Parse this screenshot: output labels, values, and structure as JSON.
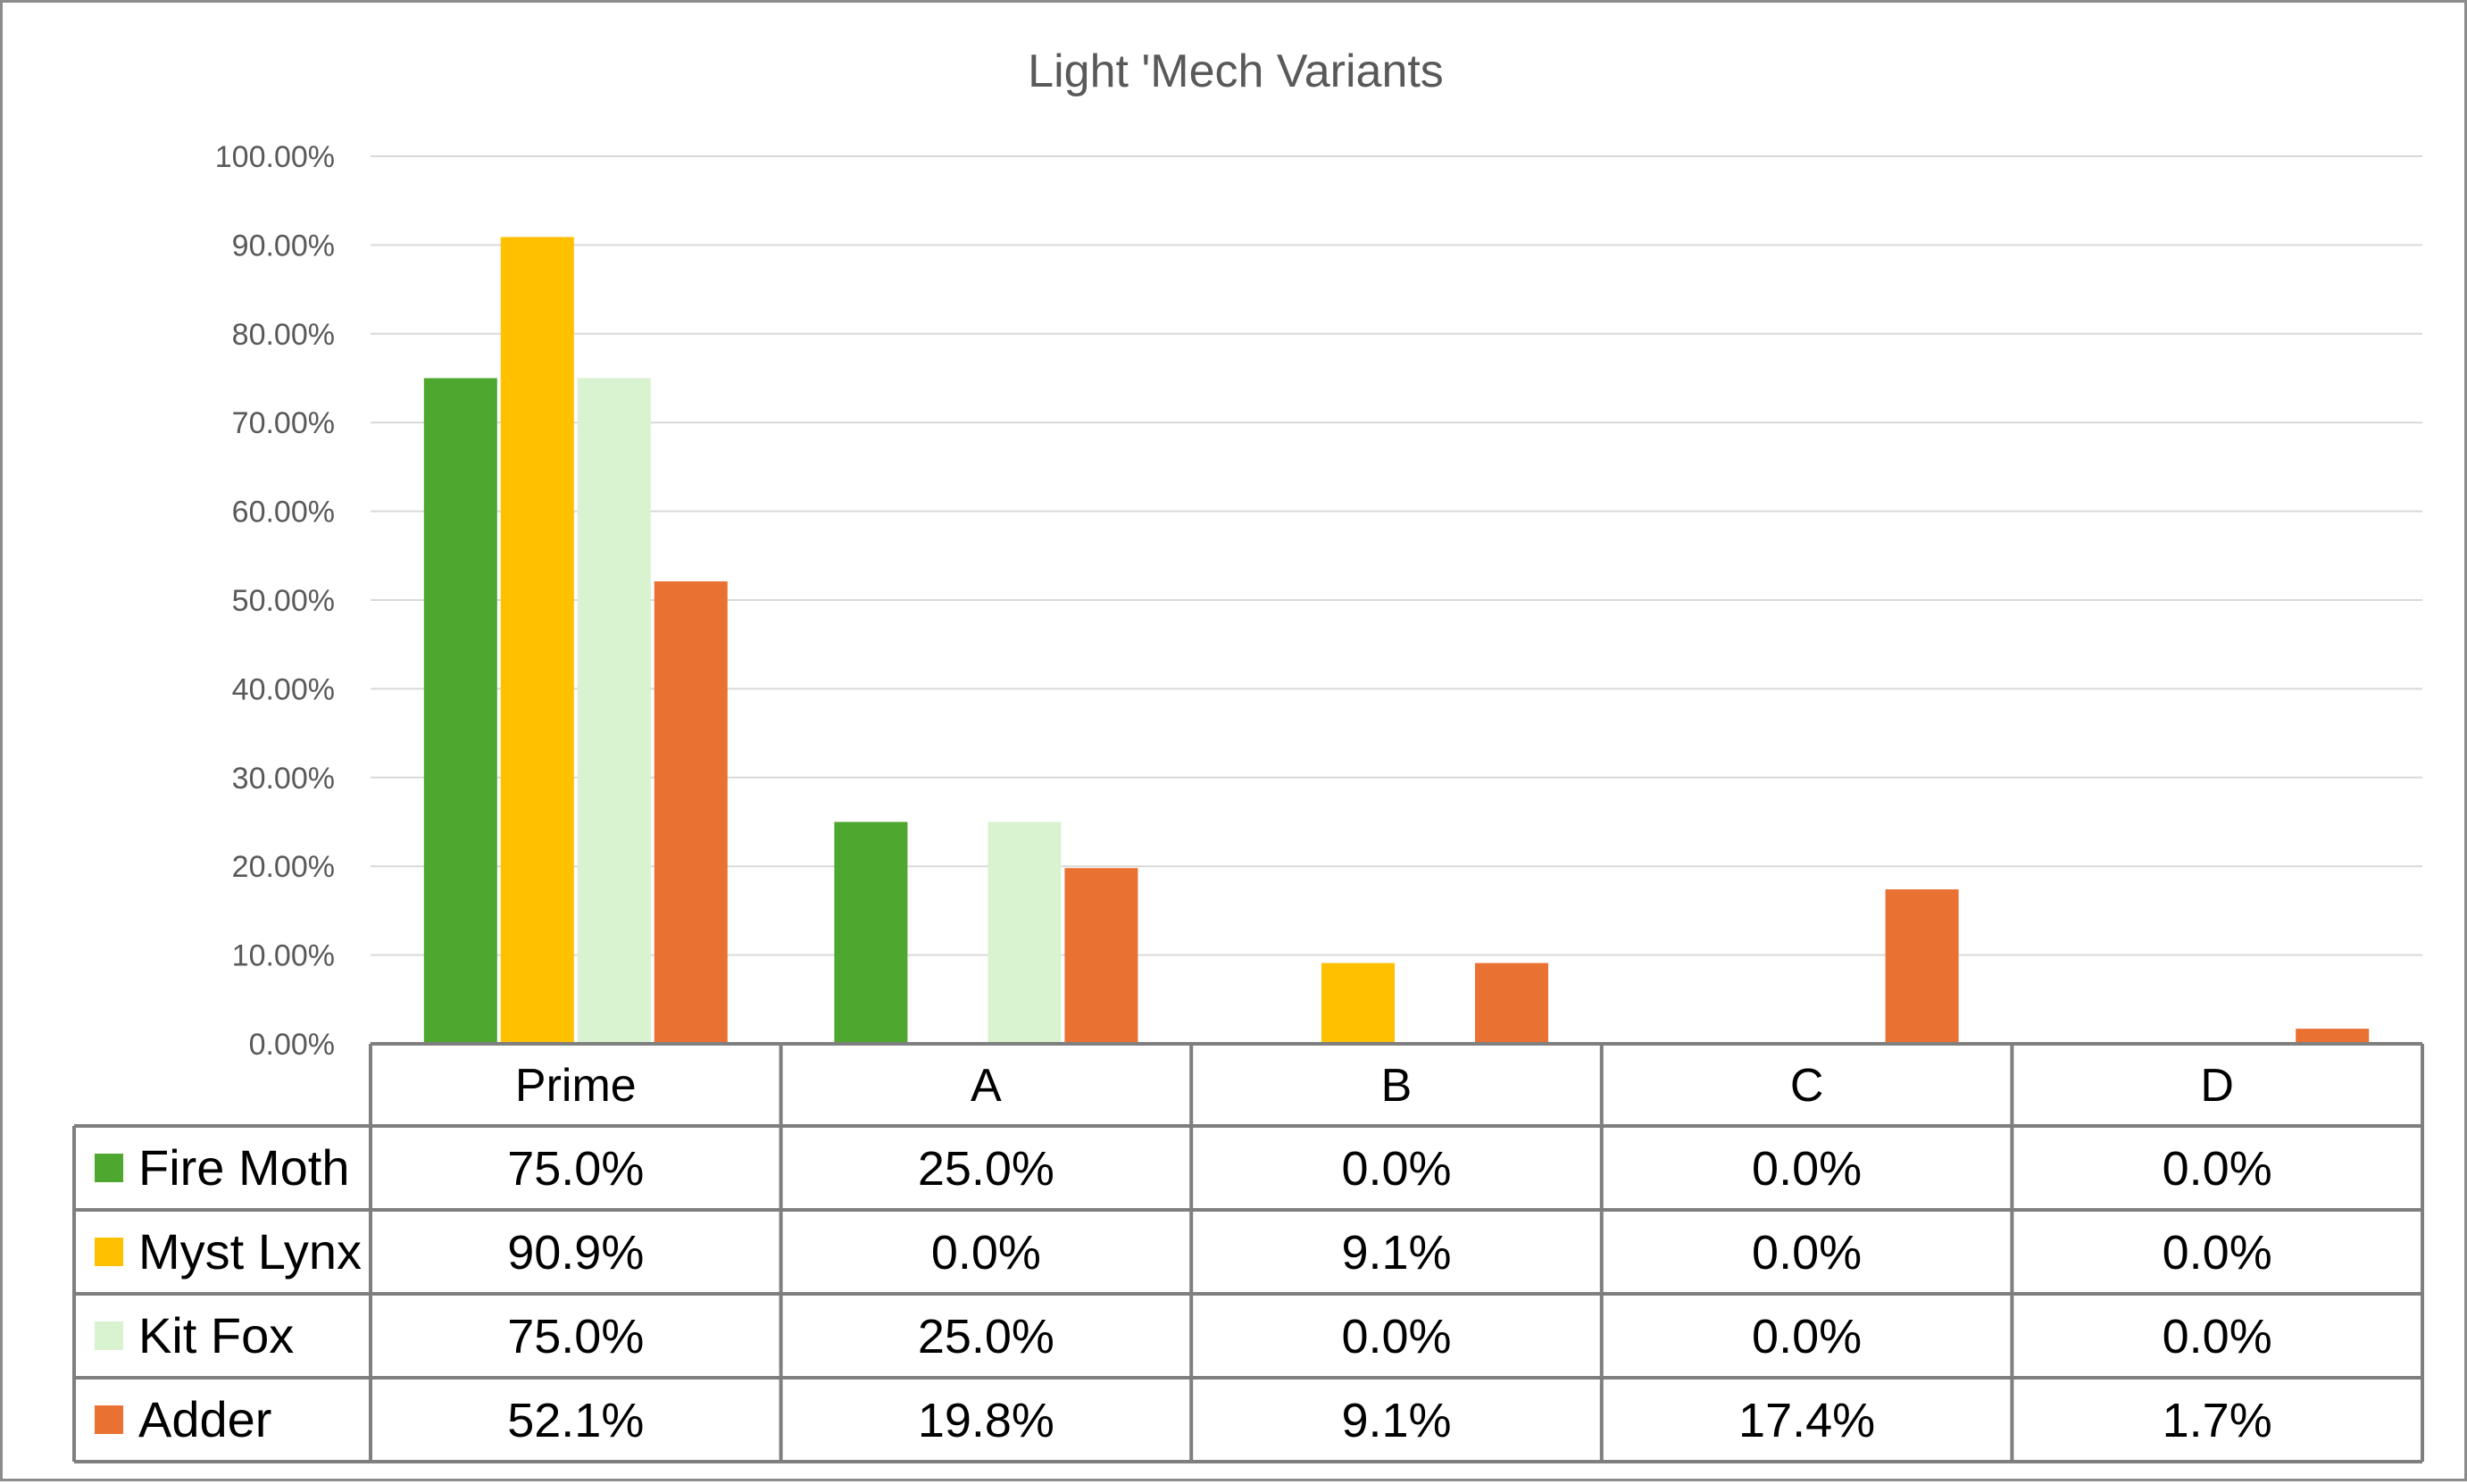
{
  "chart_data": {
    "type": "bar",
    "title": "Light 'Mech Variants",
    "categories": [
      "Prime",
      "A",
      "B",
      "C",
      "D"
    ],
    "ylim": [
      0,
      100
    ],
    "yticks": [
      0,
      10,
      20,
      30,
      40,
      50,
      60,
      70,
      80,
      90,
      100
    ],
    "ytick_labels": [
      "0.00%",
      "10.00%",
      "20.00%",
      "30.00%",
      "40.00%",
      "50.00%",
      "60.00%",
      "70.00%",
      "80.00%",
      "90.00%",
      "100.00%"
    ],
    "grid": true,
    "legend": "data-table",
    "series": [
      {
        "name": "Fire Moth",
        "color": "#4ea72e",
        "values": [
          75.0,
          25.0,
          0.0,
          0.0,
          0.0
        ],
        "labels": [
          "75.0%",
          "25.0%",
          "0.0%",
          "0.0%",
          "0.0%"
        ]
      },
      {
        "name": "Myst Lynx",
        "color": "#ffc000",
        "values": [
          90.9,
          0.0,
          9.1,
          0.0,
          0.0
        ],
        "labels": [
          "90.9%",
          "0.0%",
          "9.1%",
          "0.0%",
          "0.0%"
        ]
      },
      {
        "name": "Kit Fox",
        "color": "#d9f2d0",
        "values": [
          75.0,
          25.0,
          0.0,
          0.0,
          0.0
        ],
        "labels": [
          "75.0%",
          "25.0%",
          "0.0%",
          "0.0%",
          "0.0%"
        ]
      },
      {
        "name": "Adder",
        "color": "#e97132",
        "values": [
          52.1,
          19.8,
          9.1,
          17.4,
          1.7
        ],
        "labels": [
          "52.1%",
          "19.8%",
          "9.1%",
          "17.4%",
          "1.7%"
        ]
      }
    ]
  }
}
